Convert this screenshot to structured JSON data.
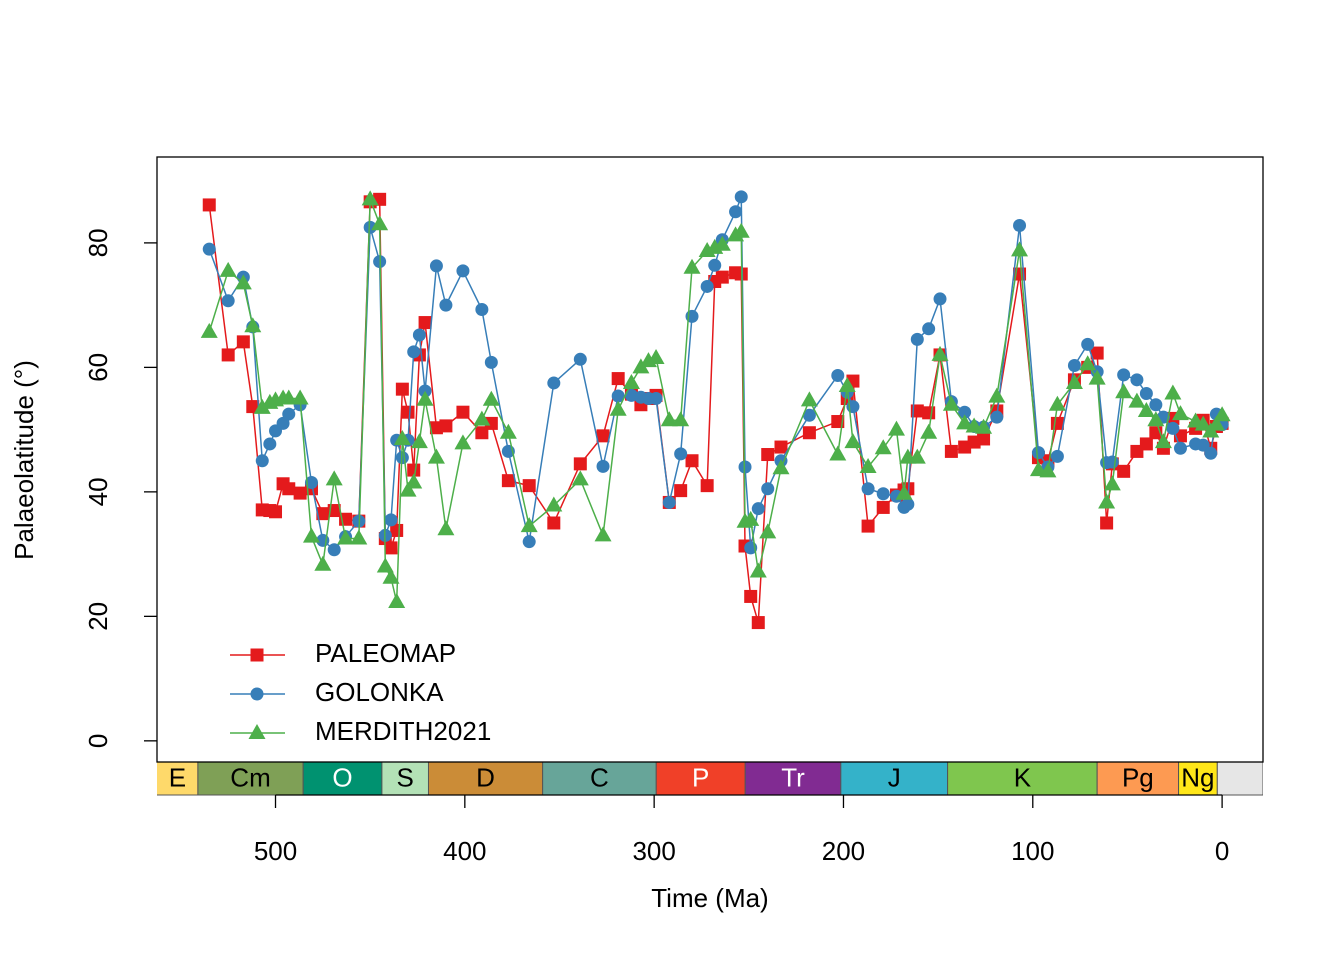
{
  "chart_data": {
    "type": "line",
    "xlabel": "Time (Ma)",
    "ylabel": "Palaeolatitude (°)",
    "xlim": [
      562.6,
      -21.6
    ],
    "ylim": [
      -3.4,
      93.8
    ],
    "xticks": [
      500,
      400,
      300,
      200,
      100,
      0
    ],
    "yticks": [
      0,
      20,
      40,
      60,
      80
    ],
    "legend": "bottom-left",
    "x": [
      535,
      525,
      517,
      512,
      507,
      503,
      500,
      496,
      493,
      487,
      481,
      475,
      469,
      463,
      456,
      450,
      445,
      442,
      439,
      436,
      433,
      430,
      427,
      424,
      421,
      415,
      410,
      401,
      391,
      386,
      377,
      366,
      353,
      339,
      327,
      319,
      312,
      307,
      303,
      299,
      292,
      286,
      280,
      272,
      268,
      264,
      257,
      254,
      252,
      249,
      245,
      240,
      233,
      218,
      203,
      198,
      195,
      187,
      179,
      172,
      168,
      166,
      161,
      155,
      149,
      143,
      136,
      131,
      126,
      119,
      107,
      97,
      92,
      87,
      78,
      71,
      66,
      61,
      58,
      52,
      45,
      40,
      35,
      31,
      26,
      22,
      14,
      10,
      6,
      3,
      0
    ],
    "series": [
      {
        "name": "PALEOMAP",
        "color": "#E41A1C",
        "marker": "square",
        "values": [
          86.1,
          62,
          64.1,
          53.7,
          37.1,
          37,
          36.8,
          41.3,
          40.5,
          39.8,
          40.5,
          36.5,
          37,
          35.6,
          35.3,
          86.6,
          87,
          32.5,
          31,
          33.8,
          56.5,
          52.8,
          43.5,
          62,
          67.2,
          50.3,
          50.6,
          52.8,
          49.5,
          51,
          41.8,
          41,
          35,
          44.5,
          49,
          58.2,
          55.7,
          54,
          55,
          55.5,
          38.3,
          40.2,
          45,
          41,
          73.8,
          74.5,
          75.2,
          75,
          31.3,
          23.2,
          19,
          46,
          47.2,
          49.5,
          51.3,
          55,
          57.8,
          34.5,
          37.5,
          39.5,
          40.3,
          40.5,
          53,
          52.7,
          62,
          46.5,
          47.2,
          48,
          48.5,
          53,
          75,
          45.5,
          45,
          51,
          58,
          60,
          62.3,
          35,
          44.5,
          43.3,
          46.5,
          47.7,
          49.5,
          47,
          51.8,
          49,
          50.2,
          51.5,
          47,
          50.5,
          51
        ]
      },
      {
        "name": "GOLONKA",
        "color": "#377EB8",
        "marker": "circle",
        "values": [
          79,
          70.7,
          74.5,
          66.5,
          45,
          47.7,
          49.8,
          51,
          52.5,
          54,
          41.5,
          32.2,
          30.7,
          32.8,
          35.3,
          82.5,
          77,
          33,
          35.5,
          48.3,
          45.5,
          48.3,
          62.5,
          65.2,
          56.2,
          76.3,
          70,
          75.5,
          69.3,
          60.8,
          46.5,
          32,
          57.5,
          61.3,
          44.1,
          55.4,
          55.5,
          55.2,
          55,
          55,
          38.3,
          46.1,
          68.2,
          73,
          76.4,
          80.5,
          85,
          87.4,
          44,
          31,
          37.3,
          40.5,
          45,
          52.3,
          58.7,
          56,
          53.7,
          40.5,
          39.7,
          39.3,
          37.5,
          38,
          64.5,
          66.2,
          71,
          54.5,
          52.8,
          50.5,
          50.4,
          52,
          82.8,
          46.3,
          44,
          45.7,
          60.3,
          63.7,
          59.3,
          44.7,
          44.8,
          58.8,
          58,
          55.8,
          54,
          52,
          50.2,
          47,
          47.7,
          47.5,
          46.2,
          52.5,
          50.8
        ]
      },
      {
        "name": "MERDITH2021",
        "color": "#4DAF4A",
        "marker": "triangle",
        "values": [
          65.7,
          75.5,
          73.5,
          66.6,
          53.5,
          54.3,
          54.7,
          55,
          55,
          55,
          32.8,
          28.3,
          42,
          32.5,
          32.5,
          87,
          83,
          28,
          26.2,
          22.3,
          48.5,
          40.2,
          41.5,
          48,
          54.8,
          45.5,
          34,
          47.8,
          51.6,
          54.8,
          49.5,
          34.5,
          37.8,
          42,
          33,
          53.2,
          57.5,
          60,
          61,
          61.5,
          51.5,
          51.5,
          76,
          78.7,
          79.2,
          79.7,
          81.2,
          81.8,
          35.2,
          35.5,
          27.2,
          33.5,
          43.8,
          54.7,
          46,
          57,
          48,
          44,
          47,
          50,
          39.7,
          45.5,
          45.5,
          49.5,
          62,
          54,
          51,
          50.5,
          50.3,
          55.3,
          78.8,
          43.5,
          43.3,
          54,
          57.5,
          60.5,
          58.2,
          38.3,
          41.2,
          56,
          54.5,
          53,
          51.5,
          48,
          55.8,
          52.5,
          51.3,
          50.8,
          49.7,
          50.8,
          52.3
        ]
      }
    ],
    "periods": [
      {
        "name": "E",
        "start": 635,
        "end": 541,
        "color": "#FED96A",
        "label_color": "#000000"
      },
      {
        "name": "Cm",
        "start": 541,
        "end": 485.4,
        "color": "#7FA056",
        "label_color": "#000000"
      },
      {
        "name": "O",
        "start": 485.4,
        "end": 443.8,
        "color": "#009270",
        "label_color": "#ffffff"
      },
      {
        "name": "S",
        "start": 443.8,
        "end": 419.2,
        "color": "#B3E1B6",
        "label_color": "#000000"
      },
      {
        "name": "D",
        "start": 419.2,
        "end": 358.9,
        "color": "#CB8C37",
        "label_color": "#000000"
      },
      {
        "name": "C",
        "start": 358.9,
        "end": 298.9,
        "color": "#67A599",
        "label_color": "#000000"
      },
      {
        "name": "P",
        "start": 298.9,
        "end": 251.9,
        "color": "#F04028",
        "label_color": "#ffffff"
      },
      {
        "name": "Tr",
        "start": 251.9,
        "end": 201.4,
        "color": "#812B92",
        "label_color": "#ffffff"
      },
      {
        "name": "J",
        "start": 201.4,
        "end": 145,
        "color": "#34B2C9",
        "label_color": "#000000"
      },
      {
        "name": "K",
        "start": 145,
        "end": 66,
        "color": "#7FC64E",
        "label_color": "#000000"
      },
      {
        "name": "Pg",
        "start": 66,
        "end": 23,
        "color": "#FD9A52",
        "label_color": "#000000"
      },
      {
        "name": "Ng",
        "start": 23,
        "end": 2.6,
        "color": "#FFE619",
        "label_color": "#000000"
      }
    ]
  }
}
